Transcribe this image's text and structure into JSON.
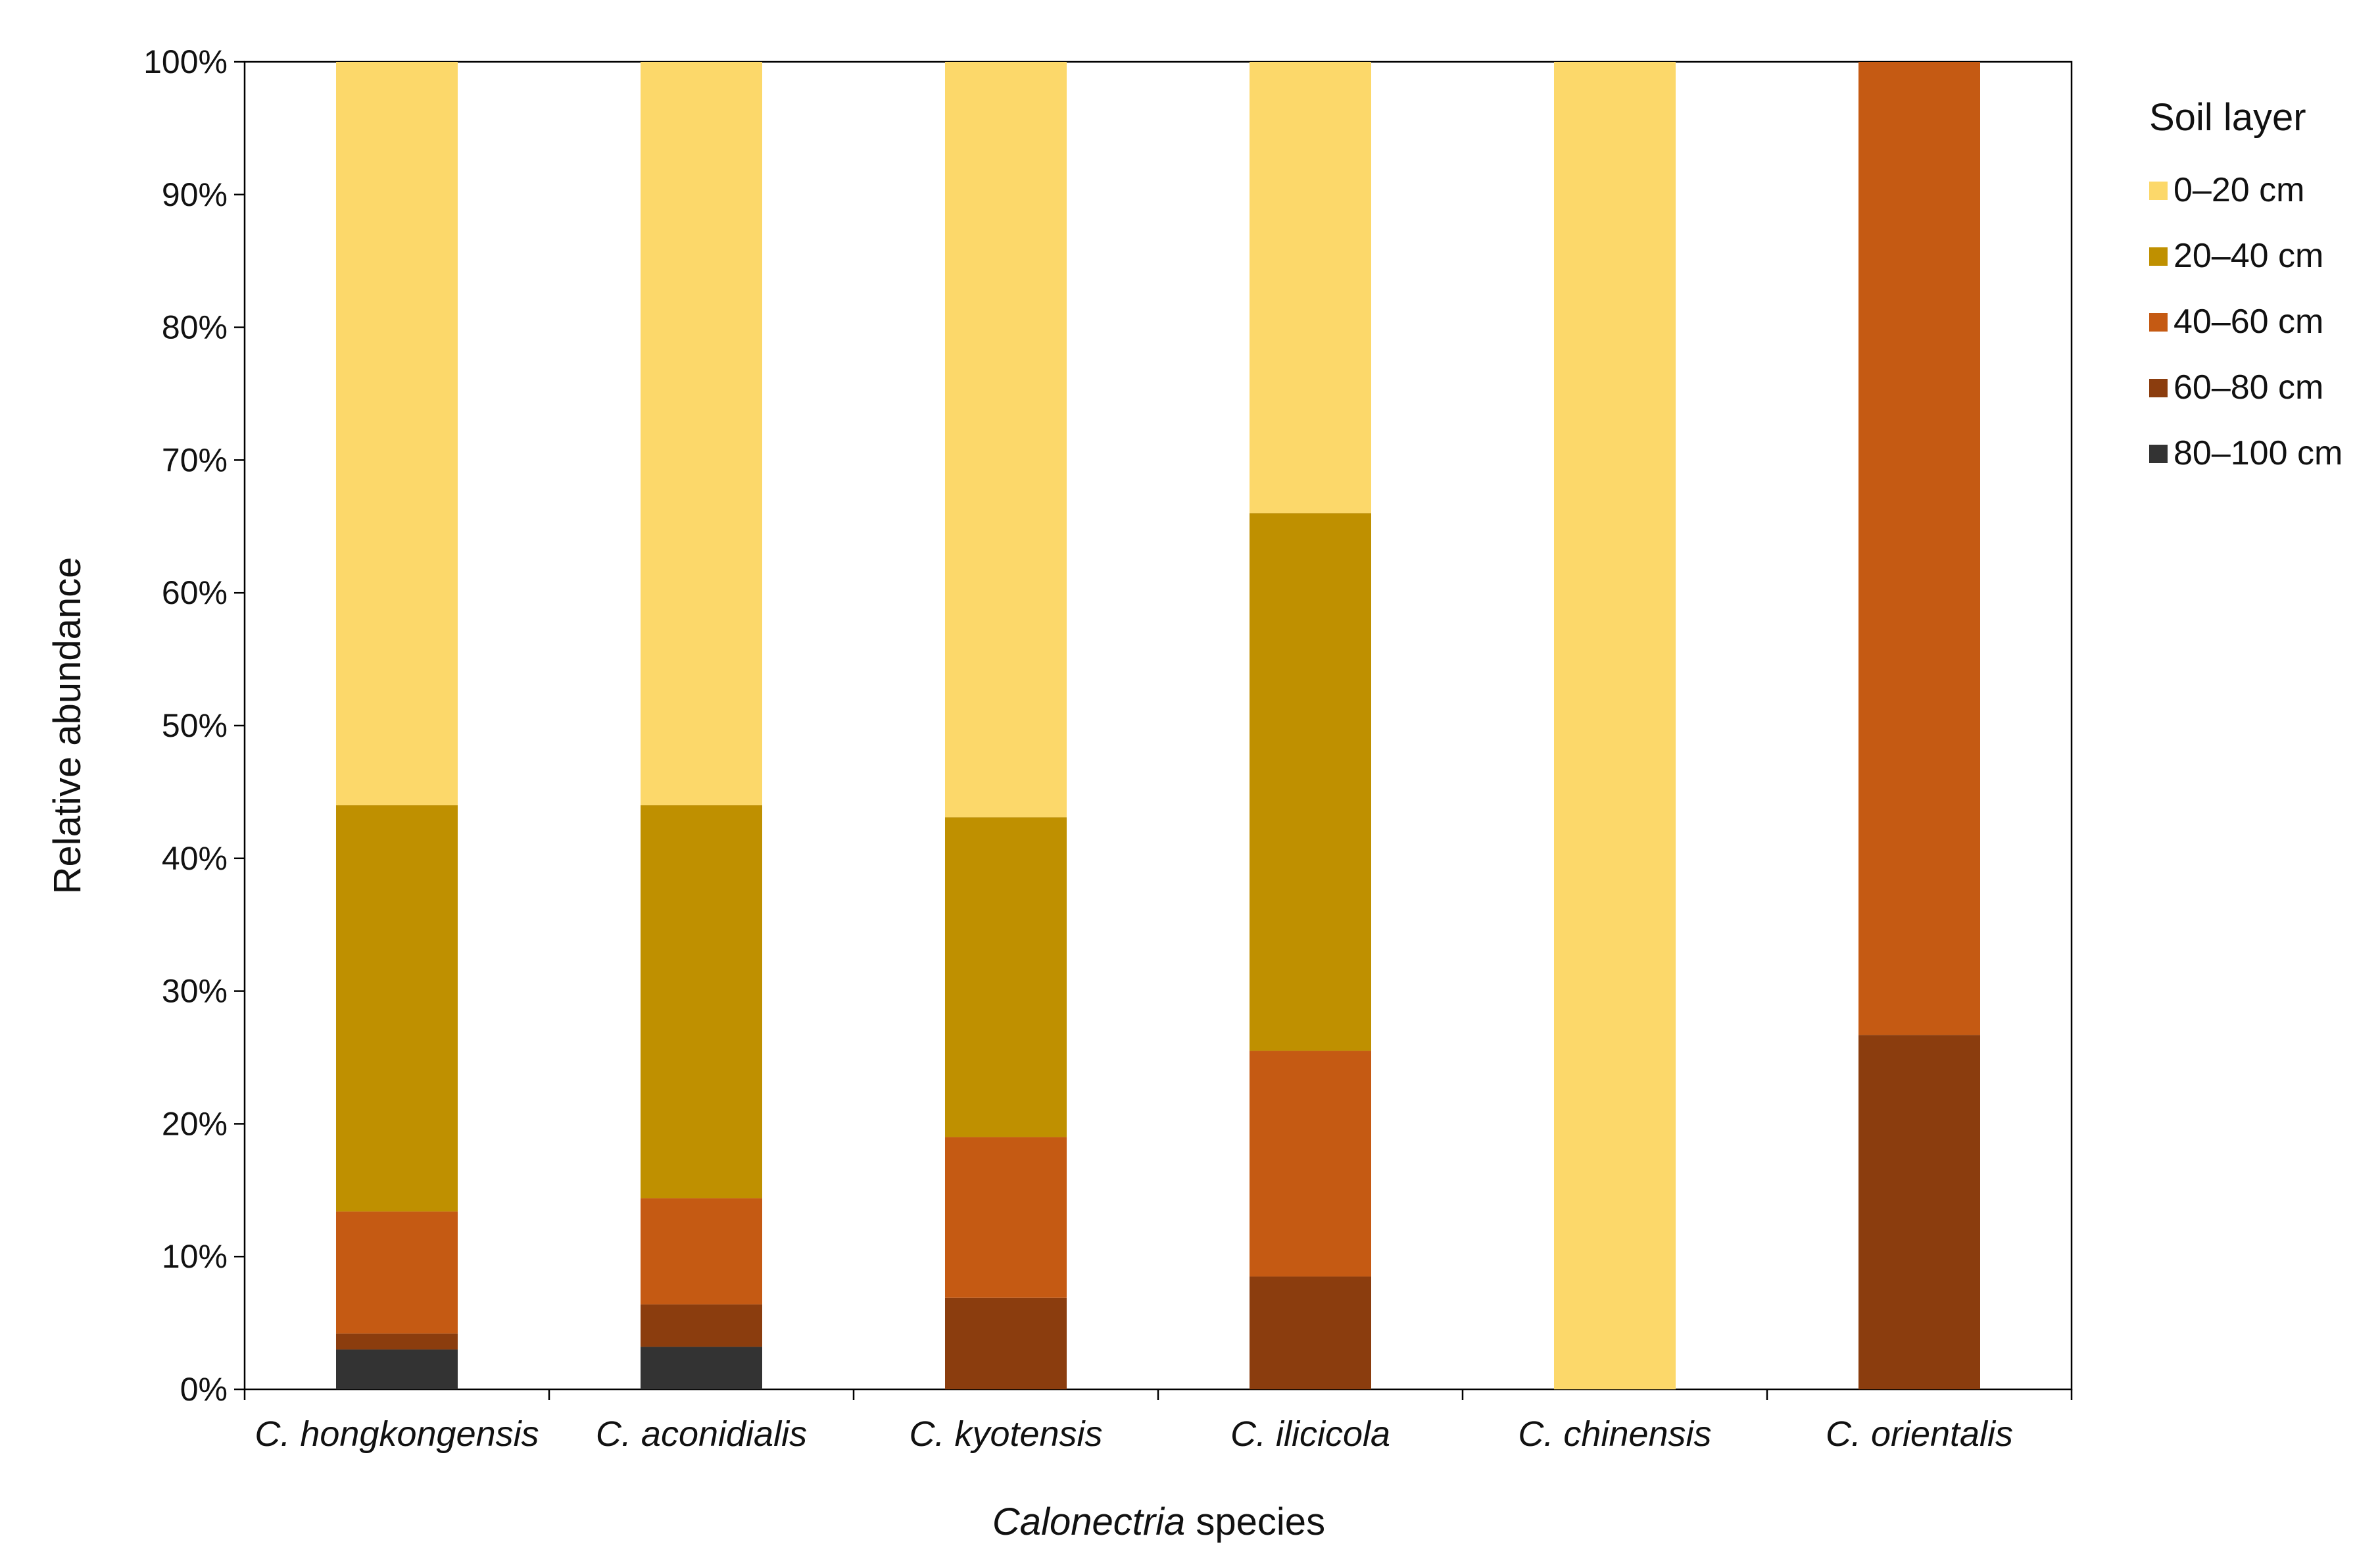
{
  "chart_data": {
    "type": "bar",
    "stacked": true,
    "percent": true,
    "categories": [
      "C. hongkongensis",
      "C. aconidialis",
      "C. kyotensis",
      "C. ilicicola",
      "C. chinensis",
      "C. orientalis"
    ],
    "series": [
      {
        "name": "80–100 cm",
        "color": "#333333",
        "values": [
          3.0,
          3.2,
          0,
          0,
          0,
          0
        ]
      },
      {
        "name": "60–80 cm",
        "color": "#8B3D0E",
        "values": [
          1.2,
          3.2,
          6.9,
          8.5,
          0,
          26.7
        ]
      },
      {
        "name": "40–60 cm",
        "color": "#C55A13",
        "values": [
          9.2,
          8.0,
          12.1,
          17.0,
          0,
          73.3
        ]
      },
      {
        "name": "20–40 cm",
        "color": "#BF9000",
        "values": [
          30.6,
          29.6,
          24.1,
          40.5,
          0,
          0
        ]
      },
      {
        "name": "0–20 cm",
        "color": "#FCD86A",
        "values": [
          56.0,
          56.0,
          56.9,
          34.0,
          100,
          0
        ]
      }
    ],
    "ylim": [
      0,
      100
    ],
    "yticks": [
      "0%",
      "10%",
      "20%",
      "30%",
      "40%",
      "50%",
      "60%",
      "70%",
      "80%",
      "90%",
      "100%"
    ],
    "ylabel": "Relative abundance",
    "xlabel_italic": "Calonectria",
    "xlabel_rest": " species",
    "legend_title": "Soil layer",
    "legend_position": "right",
    "legend_order": [
      "0–20 cm",
      "20–40 cm",
      "40–60 cm",
      "60–80 cm",
      "80–100 cm"
    ]
  }
}
